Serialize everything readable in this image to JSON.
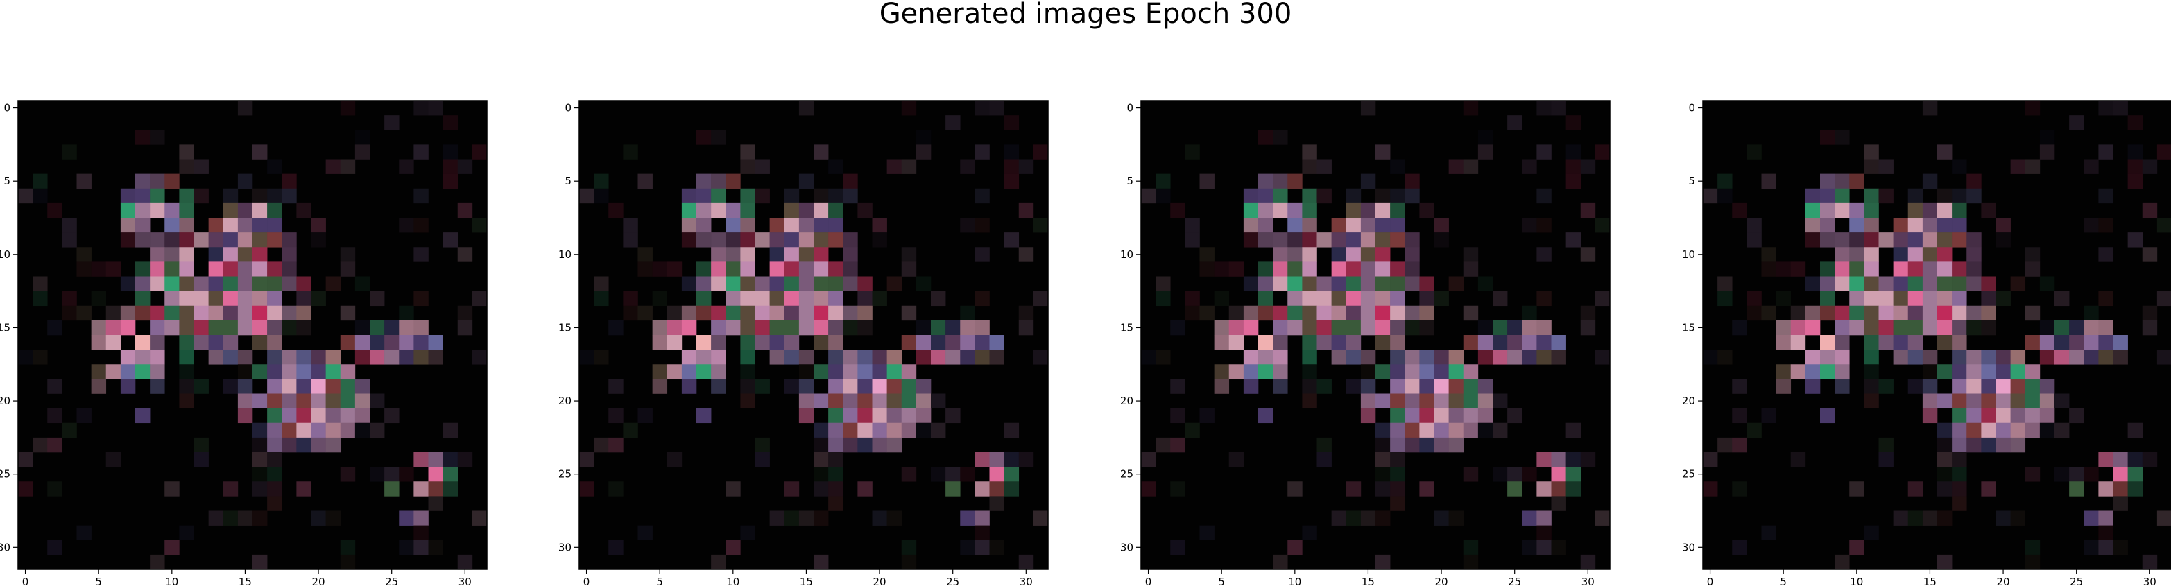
{
  "title": "Generated images Epoch 300",
  "chart_data": {
    "type": "heatmap",
    "title": "Generated images Epoch 300",
    "grid_size": [
      32,
      32
    ],
    "panel_count": 4,
    "xlim": [
      -0.5,
      31.5
    ],
    "ylim": [
      31.5,
      -0.5
    ],
    "xticks": [
      0,
      5,
      10,
      15,
      20,
      25,
      30
    ],
    "yticks": [
      0,
      5,
      10,
      15,
      20,
      25,
      30
    ],
    "grid": false,
    "background_color": "#020202",
    "palette": [
      "#5a3a5a",
      "#7a5a7a",
      "#a07a98",
      "#c08ab0",
      "#8a6a9a",
      "#6a6aa0",
      "#3a5a3a",
      "#2a6a4a",
      "#7a3a3a",
      "#9a2a4a",
      "#5a4a3a",
      "#4a3a6a",
      "#2a2a4a",
      "#b08090",
      "#d0a0b0",
      "#e06a9a"
    ],
    "hot_colors": [
      "#c02a5a",
      "#d04aa0",
      "#e8a0c8",
      "#f0b0b0",
      "#3a3aa0",
      "#30a070"
    ]
  }
}
